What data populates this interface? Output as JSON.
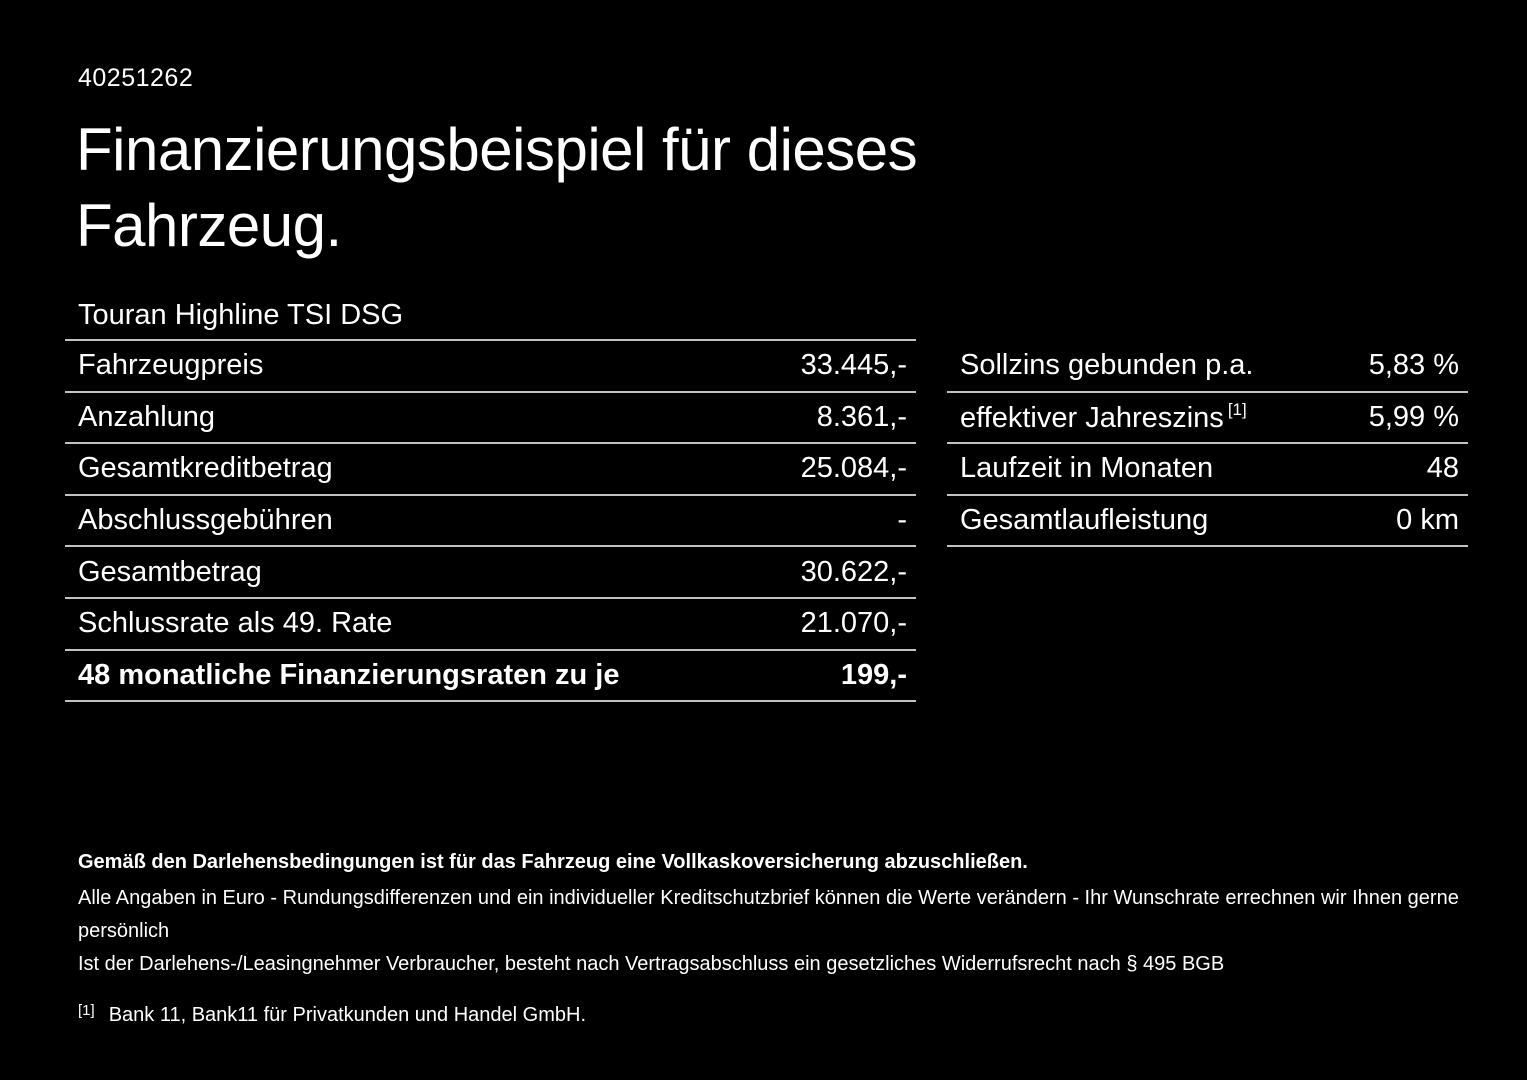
{
  "page": {
    "doc_id": "40251262",
    "title": "Finanzierungsbeispiel für dieses Fahrzeug.",
    "vehicle_name": "Touran Highline TSI DSG"
  },
  "left_table": {
    "rows": [
      {
        "label": "Fahrzeugpreis",
        "value": "33.445,-"
      },
      {
        "label": "Anzahlung",
        "value": "8.361,-"
      },
      {
        "label": "Gesamtkreditbetrag",
        "value": "25.084,-"
      },
      {
        "label": "Abschlussgebühren",
        "value": "-"
      },
      {
        "label": "Gesamtbetrag",
        "value": "30.622,-"
      },
      {
        "label": "Schlussrate als 49. Rate",
        "value": "21.070,-"
      },
      {
        "label": "48 monatliche Finanzierungsraten zu je",
        "value": "199,-"
      }
    ]
  },
  "right_table": {
    "rows": [
      {
        "label": "Sollzins gebunden p.a.",
        "sup": "",
        "value": "5,83 %"
      },
      {
        "label": "effektiver Jahreszins",
        "sup": "[1]",
        "value": "5,99 %"
      },
      {
        "label": "Laufzeit in Monaten",
        "sup": "",
        "value": "48"
      },
      {
        "label": "Gesamtlaufleistung",
        "sup": "",
        "value": "0 km"
      }
    ]
  },
  "footer": {
    "insurance_note": "Gemäß den Darlehensbedingungen ist für das Fahrzeug eine Vollkaskoversicherung abzuschließen.",
    "disclaimer_line1": "Alle Angaben in Euro - Rundungsdifferenzen und ein individueller Kreditschutzbrief können die Werte verändern - Ihr Wunschrate errechnen wir Ihnen gerne persönlich",
    "disclaimer_line2": "Ist der Darlehens-/Leasingnehmer Verbraucher, besteht nach Vertragsabschluss ein gesetzliches Widerrufsrecht nach § 495 BGB",
    "footnote_marker": "[1]",
    "footnote_text": "Bank 11, Bank11 für Privatkunden und Handel GmbH."
  },
  "colors": {
    "background": "#000000",
    "text": "#ffffff",
    "divider": "#c2c2c2"
  }
}
